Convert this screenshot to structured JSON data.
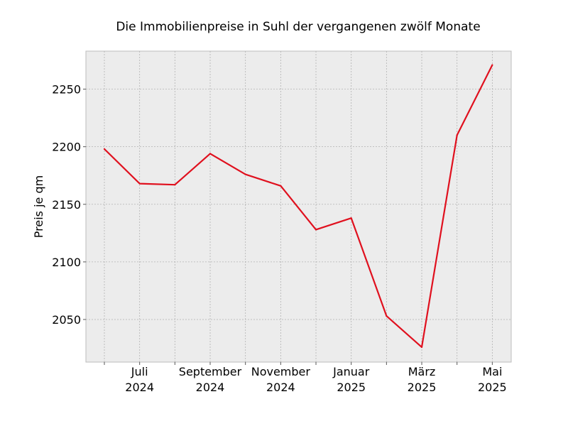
{
  "chart_data": {
    "type": "line",
    "title": "Die Immobilienpreise in Suhl der vergangenen zwölf Monate",
    "xlabel": "",
    "ylabel": "Preis je qm",
    "x": [
      "2024-06",
      "2024-07",
      "2024-08",
      "2024-09",
      "2024-10",
      "2024-11",
      "2024-12",
      "2025-01",
      "2025-02",
      "2025-03",
      "2025-04",
      "2025-05"
    ],
    "x_tick_labels": [
      {
        "x": "2024-07",
        "lines": [
          "Juli",
          "2024"
        ]
      },
      {
        "x": "2024-09",
        "lines": [
          "September",
          "2024"
        ]
      },
      {
        "x": "2024-11",
        "lines": [
          "November",
          "2024"
        ]
      },
      {
        "x": "2025-01",
        "lines": [
          "Januar",
          "2025"
        ]
      },
      {
        "x": "2025-03",
        "lines": [
          "März",
          "2025"
        ]
      },
      {
        "x": "2025-05",
        "lines": [
          "Mai",
          "2025"
        ]
      }
    ],
    "y_ticks": [
      2050,
      2100,
      2150,
      2200,
      2250
    ],
    "ylim": [
      2013,
      2283
    ],
    "grid": true,
    "series": [
      {
        "name": "",
        "color": "#e0101e",
        "values": [
          2198,
          2168,
          2167,
          2194,
          2176,
          2166,
          2128,
          2138,
          2053,
          2026,
          2210,
          2271
        ]
      }
    ]
  }
}
